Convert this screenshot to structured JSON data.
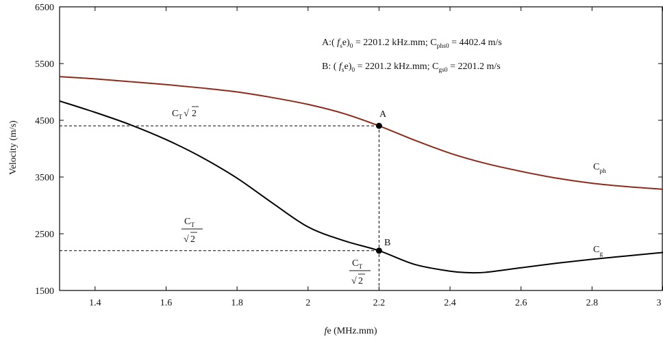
{
  "chart_data": {
    "type": "line",
    "xlabel": {
      "italic": "f",
      "rest": "e (MHz.mm)"
    },
    "ylabel": "Velocity (m/s)",
    "xlim": [
      1.3,
      3.0
    ],
    "ylim": [
      1500,
      6500
    ],
    "xticks": [
      1.4,
      1.6,
      1.8,
      2,
      2.2,
      2.4,
      2.6,
      2.8,
      3
    ],
    "xtick_labels": [
      "1.4",
      "1.6",
      "1.8",
      "2",
      "2.2",
      "2.4",
      "2.6",
      "2.8",
      "3"
    ],
    "yticks": [
      1500,
      2500,
      3500,
      4500,
      5500,
      6500
    ],
    "ytick_labels": [
      "1500",
      "2500",
      "3500",
      "4500",
      "5500",
      "6500"
    ],
    "grid": false,
    "series": [
      {
        "name": "C_ph",
        "color": "#8b2a1a",
        "x": [
          1.3,
          1.4,
          1.5,
          1.6,
          1.7,
          1.8,
          1.9,
          2.0,
          2.1,
          2.2,
          2.3,
          2.4,
          2.5,
          2.6,
          2.7,
          2.8,
          2.9,
          3.0
        ],
        "y": [
          5270,
          5230,
          5180,
          5130,
          5070,
          5000,
          4900,
          4780,
          4620,
          4402,
          4150,
          3920,
          3740,
          3600,
          3480,
          3390,
          3330,
          3285
        ]
      },
      {
        "name": "C_g",
        "color": "#000000",
        "x": [
          1.3,
          1.4,
          1.5,
          1.6,
          1.7,
          1.8,
          1.9,
          2.0,
          2.1,
          2.2,
          2.3,
          2.4,
          2.45,
          2.5,
          2.6,
          2.7,
          2.8,
          2.9,
          3.0
        ],
        "y": [
          4840,
          4640,
          4420,
          4160,
          3850,
          3480,
          3040,
          2620,
          2380,
          2201,
          1960,
          1840,
          1815,
          1820,
          1900,
          1980,
          2050,
          2110,
          2170
        ]
      }
    ],
    "points": [
      {
        "label": "A",
        "x": 2.2,
        "y": 4402.4
      },
      {
        "label": "B",
        "x": 2.2,
        "y": 2201.2
      }
    ],
    "reference_lines": [
      {
        "y": 4402.4,
        "x_to": 2.2,
        "style": "dashed"
      },
      {
        "y": 2201.2,
        "x_to": 2.2,
        "style": "dashed"
      },
      {
        "x": 2.2,
        "y_from": 1500,
        "y_to": 4402.4,
        "style": "dashed"
      }
    ],
    "annotations": {
      "line_A": {
        "lead": "A:( ",
        "f": "f",
        "s": "s",
        "e": "e)",
        "zero": "0",
        "mid": " = 2201.2 kHz.mm; C",
        "sub": "phs0",
        "tail": " = 4402.4 m/s"
      },
      "line_B": {
        "lead": "B: ( ",
        "f": "f",
        "s": "s",
        "e": "e)",
        "zero": "0",
        "mid": " = 2201.2 kHz.mm; C",
        "sub": "gs0",
        "tail": " = 2201.2 m/s"
      },
      "label_A": "A",
      "label_B": "B",
      "ct_sqrt2": {
        "c": "C",
        "t": "T",
        "root": "√",
        "two": "2"
      },
      "ct_over_sqrt2": {
        "c": "C",
        "t": "T",
        "root": "√",
        "two": "2"
      },
      "cph": {
        "c": "C",
        "sub": "ph"
      },
      "cg": {
        "c": "C",
        "sub": "g"
      }
    }
  }
}
